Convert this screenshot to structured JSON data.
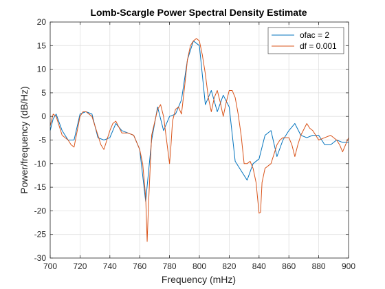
{
  "chart_data": {
    "type": "line",
    "title": "Lomb-Scargle Power Spectral Density Estimate",
    "xlabel": "Frequency (mHz)",
    "ylabel": "Power/frequency (dB/Hz)",
    "xlim": [
      700,
      900
    ],
    "ylim": [
      -30,
      20
    ],
    "xticks": [
      700,
      720,
      740,
      760,
      780,
      800,
      820,
      840,
      860,
      880,
      900
    ],
    "yticks": [
      -30,
      -25,
      -20,
      -15,
      -10,
      -5,
      0,
      5,
      10,
      15,
      20
    ],
    "grid": true,
    "legend_position": "top-right",
    "series": [
      {
        "name": "ofac = 2",
        "color": "#0072BD",
        "x": [
          700,
          702,
          704,
          708,
          712,
          716,
          720,
          724,
          728,
          732,
          736,
          740,
          744,
          748,
          752,
          756,
          760,
          764,
          768,
          772,
          776,
          780,
          784,
          788,
          792,
          796,
          800,
          804,
          808,
          812,
          816,
          820,
          824,
          828,
          832,
          836,
          840,
          844,
          848,
          852,
          856,
          860,
          864,
          868,
          872,
          876,
          880,
          884,
          888,
          892,
          896,
          900
        ],
        "y": [
          -3,
          -0.5,
          0.5,
          -3,
          -5,
          -5,
          0.5,
          1,
          0.5,
          -4.5,
          -5,
          -4.5,
          -1.5,
          -3,
          -3.5,
          -4,
          -7,
          -18,
          -5,
          2,
          -3,
          0,
          0.5,
          3.5,
          12,
          16,
          15,
          2.5,
          5.5,
          1,
          4.5,
          2,
          -9.5,
          -11.5,
          -13.5,
          -10,
          -9,
          -4,
          -3,
          -8.5,
          -5,
          -3,
          -1.5,
          -4,
          -4.5,
          -4,
          -4,
          -6,
          -6,
          -5,
          -5.5,
          -5.5
        ]
      },
      {
        "name": "df = 0.001",
        "color": "#D95319",
        "x": [
          700,
          702,
          704,
          708,
          712,
          714,
          716,
          720,
          722,
          724,
          728,
          730,
          732,
          734,
          736,
          738,
          740,
          742,
          744,
          748,
          752,
          756,
          760,
          762,
          764,
          765,
          766,
          768,
          772,
          774,
          776,
          778,
          780,
          781,
          782,
          784,
          786,
          788,
          790,
          792,
          794,
          796,
          798,
          800,
          802,
          804,
          806,
          808,
          810,
          812,
          814,
          816,
          818,
          820,
          822,
          824,
          826,
          828,
          830,
          832,
          834,
          836,
          838,
          840,
          841,
          842,
          844,
          848,
          852,
          854,
          856,
          860,
          862,
          864,
          866,
          868,
          872,
          874,
          876,
          880,
          884,
          888,
          892,
          894,
          896,
          898,
          900
        ],
        "y": [
          -2,
          0.5,
          0,
          -4,
          -5,
          -6,
          -6.5,
          0,
          1,
          1,
          0,
          -2,
          -4,
          -6,
          -7,
          -5,
          -3,
          -1.5,
          -1,
          -3.5,
          -3.5,
          -4,
          -7,
          -10,
          -17,
          -26.5,
          -18,
          -4,
          1.5,
          2.5,
          0,
          -5,
          -10,
          -6,
          -1,
          1.5,
          2,
          0.5,
          6,
          12,
          15,
          16,
          16.5,
          16,
          13,
          9,
          4,
          1,
          4,
          5.5,
          3,
          0,
          3,
          5.5,
          5.5,
          4,
          0.5,
          -4,
          -10,
          -10,
          -9.5,
          -11,
          -14,
          -20.5,
          -20.3,
          -14,
          -11,
          -10,
          -6,
          -5,
          -4.5,
          -4.5,
          -6,
          -8.5,
          -6,
          -4,
          -1.5,
          -2.5,
          -3,
          -5,
          -4.5,
          -4,
          -5,
          -6,
          -7.5,
          -6,
          -4.5
        ]
      }
    ]
  }
}
